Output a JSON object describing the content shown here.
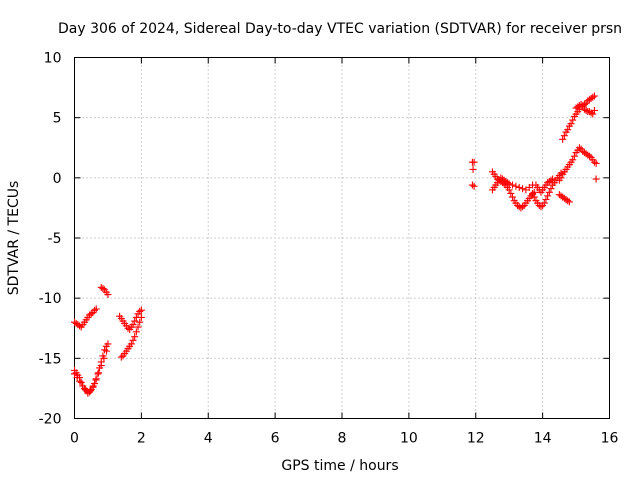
{
  "chart_data": {
    "type": "scatter",
    "title": "Day 306 of 2024, Sidereal Day-to-day VTEC variation (SDTVAR) for receiver prsn",
    "xlabel": "GPS time / hours",
    "ylabel": "SDTVAR / TECUs",
    "xlim": [
      0,
      16
    ],
    "ylim": [
      -20,
      10
    ],
    "x_ticks": [
      0,
      2,
      4,
      6,
      8,
      10,
      12,
      14,
      16
    ],
    "y_ticks": [
      -20,
      -15,
      -10,
      -5,
      0,
      5,
      10
    ],
    "x_tick_labels": [
      "0",
      "2",
      "4",
      "6",
      "8",
      "10",
      "12",
      "14",
      "16"
    ],
    "y_tick_labels": [
      "-20",
      "-15",
      "-10",
      "-5",
      "0",
      "5",
      "10"
    ],
    "grid": true,
    "marker": "+",
    "color": "#ff0000",
    "series": [
      {
        "values": [
          [
            0.0,
            -16.0
          ],
          [
            0.05,
            -16.2
          ],
          [
            0.1,
            -16.4
          ],
          [
            0.15,
            -16.6
          ],
          [
            0.2,
            -17.0
          ],
          [
            0.25,
            -17.3
          ],
          [
            0.3,
            -17.5
          ],
          [
            0.35,
            -17.7
          ],
          [
            0.4,
            -17.8
          ],
          [
            0.45,
            -17.8
          ],
          [
            0.5,
            -17.6
          ],
          [
            0.55,
            -17.4
          ],
          [
            0.6,
            -17.1
          ],
          [
            0.65,
            -16.7
          ],
          [
            0.7,
            -16.3
          ],
          [
            0.75,
            -15.8
          ],
          [
            0.8,
            -15.3
          ],
          [
            0.85,
            -14.8
          ],
          [
            0.9,
            -14.3
          ],
          [
            0.95,
            -14.0
          ],
          [
            1.0,
            -13.8
          ],
          [
            0.0,
            -16.3
          ],
          [
            0.08,
            -16.6
          ],
          [
            0.16,
            -16.9
          ],
          [
            0.24,
            -17.3
          ],
          [
            0.32,
            -17.6
          ],
          [
            0.4,
            -17.9
          ],
          [
            0.48,
            -17.7
          ],
          [
            0.56,
            -17.3
          ],
          [
            0.64,
            -16.8
          ],
          [
            0.72,
            -16.2
          ],
          [
            0.8,
            -15.6
          ],
          [
            0.88,
            -15.0
          ],
          [
            0.96,
            -14.4
          ],
          [
            0.0,
            -12.0
          ],
          [
            0.05,
            -12.1
          ],
          [
            0.1,
            -12.2
          ],
          [
            0.15,
            -12.3
          ],
          [
            0.2,
            -12.4
          ],
          [
            0.25,
            -12.2
          ],
          [
            0.3,
            -12.0
          ],
          [
            0.35,
            -11.8
          ],
          [
            0.4,
            -11.6
          ],
          [
            0.45,
            -11.4
          ],
          [
            0.5,
            -11.3
          ],
          [
            0.55,
            -11.2
          ],
          [
            0.6,
            -11.0
          ],
          [
            0.65,
            -10.9
          ],
          [
            0.8,
            -9.1
          ],
          [
            0.85,
            -9.2
          ],
          [
            0.9,
            -9.3
          ],
          [
            0.95,
            -9.5
          ],
          [
            1.0,
            -9.7
          ],
          [
            1.4,
            -14.9
          ],
          [
            1.45,
            -14.8
          ],
          [
            1.5,
            -14.6
          ],
          [
            1.55,
            -14.4
          ],
          [
            1.6,
            -14.2
          ],
          [
            1.65,
            -14.0
          ],
          [
            1.7,
            -13.8
          ],
          [
            1.75,
            -13.5
          ],
          [
            1.8,
            -13.2
          ],
          [
            1.85,
            -12.8
          ],
          [
            1.9,
            -12.4
          ],
          [
            1.95,
            -12.0
          ],
          [
            2.0,
            -11.6
          ],
          [
            1.35,
            -11.5
          ],
          [
            1.4,
            -11.7
          ],
          [
            1.45,
            -11.9
          ],
          [
            1.5,
            -12.1
          ],
          [
            1.55,
            -12.3
          ],
          [
            1.6,
            -12.5
          ],
          [
            1.65,
            -12.6
          ],
          [
            1.7,
            -12.4
          ],
          [
            1.75,
            -12.2
          ],
          [
            1.8,
            -11.9
          ],
          [
            1.85,
            -11.6
          ],
          [
            1.9,
            -11.3
          ],
          [
            1.95,
            -11.1
          ],
          [
            2.0,
            -11.0
          ],
          [
            11.9,
            1.3
          ],
          [
            11.95,
            1.3
          ],
          [
            11.92,
            0.7
          ],
          [
            11.9,
            -0.6
          ],
          [
            11.95,
            -0.7
          ],
          [
            12.5,
            0.5
          ],
          [
            12.55,
            0.3
          ],
          [
            12.6,
            0.1
          ],
          [
            12.65,
            -0.1
          ],
          [
            12.7,
            -0.2
          ],
          [
            12.75,
            -0.3
          ],
          [
            12.8,
            -0.4
          ],
          [
            12.85,
            -0.5
          ],
          [
            12.9,
            -0.6
          ],
          [
            12.95,
            -0.8
          ],
          [
            13.0,
            -1.0
          ],
          [
            13.05,
            -1.3
          ],
          [
            13.1,
            -1.6
          ],
          [
            13.15,
            -1.9
          ],
          [
            13.2,
            -2.1
          ],
          [
            13.25,
            -2.3
          ],
          [
            13.3,
            -2.4
          ],
          [
            13.35,
            -2.5
          ],
          [
            13.4,
            -2.4
          ],
          [
            13.45,
            -2.3
          ],
          [
            13.5,
            -2.1
          ],
          [
            13.55,
            -1.9
          ],
          [
            13.6,
            -1.7
          ],
          [
            13.65,
            -1.5
          ],
          [
            13.7,
            -1.3
          ],
          [
            13.75,
            -1.2
          ],
          [
            12.5,
            -1.0
          ],
          [
            12.55,
            -0.8
          ],
          [
            12.6,
            -0.6
          ],
          [
            12.65,
            -0.4
          ],
          [
            12.7,
            -0.2
          ],
          [
            12.75,
            0.0
          ],
          [
            12.8,
            -0.1
          ],
          [
            12.85,
            -0.2
          ],
          [
            12.9,
            -0.3
          ],
          [
            12.95,
            -0.4
          ],
          [
            13.0,
            -0.5
          ],
          [
            13.1,
            -0.6
          ],
          [
            13.2,
            -0.7
          ],
          [
            13.3,
            -0.8
          ],
          [
            13.4,
            -0.9
          ],
          [
            13.5,
            -1.0
          ],
          [
            13.6,
            -0.8
          ],
          [
            13.7,
            -0.6
          ],
          [
            13.7,
            -1.4
          ],
          [
            13.75,
            -1.6
          ],
          [
            13.8,
            -1.9
          ],
          [
            13.85,
            -2.1
          ],
          [
            13.9,
            -2.3
          ],
          [
            13.95,
            -2.4
          ],
          [
            14.0,
            -2.3
          ],
          [
            14.05,
            -2.1
          ],
          [
            14.1,
            -1.8
          ],
          [
            14.15,
            -1.5
          ],
          [
            14.2,
            -1.2
          ],
          [
            14.25,
            -0.9
          ],
          [
            14.3,
            -0.6
          ],
          [
            14.35,
            -0.4
          ],
          [
            14.4,
            -0.2
          ],
          [
            14.45,
            0.0
          ],
          [
            14.5,
            0.2
          ],
          [
            14.55,
            0.4
          ],
          [
            13.8,
            -0.6
          ],
          [
            13.85,
            -0.8
          ],
          [
            13.9,
            -1.0
          ],
          [
            13.95,
            -1.2
          ],
          [
            14.0,
            -1.0
          ],
          [
            14.05,
            -0.8
          ],
          [
            14.1,
            -0.6
          ],
          [
            14.15,
            -0.4
          ],
          [
            14.2,
            -0.3
          ],
          [
            14.25,
            -0.2
          ],
          [
            14.3,
            -0.1
          ],
          [
            14.5,
            -1.4
          ],
          [
            14.55,
            -1.5
          ],
          [
            14.6,
            -1.6
          ],
          [
            14.65,
            -1.7
          ],
          [
            14.7,
            -1.8
          ],
          [
            14.75,
            -1.9
          ],
          [
            14.8,
            -2.0
          ],
          [
            14.5,
            -0.2
          ],
          [
            14.55,
            0.0
          ],
          [
            14.6,
            0.3
          ],
          [
            14.65,
            0.5
          ],
          [
            14.7,
            0.7
          ],
          [
            14.75,
            0.9
          ],
          [
            14.8,
            1.1
          ],
          [
            14.85,
            1.3
          ],
          [
            14.9,
            1.5
          ],
          [
            14.95,
            1.8
          ],
          [
            15.0,
            2.1
          ],
          [
            15.05,
            2.3
          ],
          [
            15.1,
            2.5
          ],
          [
            15.15,
            2.4
          ],
          [
            15.2,
            2.2
          ],
          [
            15.25,
            2.1
          ],
          [
            15.3,
            2.0
          ],
          [
            15.35,
            1.9
          ],
          [
            15.4,
            1.8
          ],
          [
            15.45,
            1.7
          ],
          [
            15.5,
            1.5
          ],
          [
            15.55,
            1.3
          ],
          [
            15.6,
            1.2
          ],
          [
            14.6,
            3.2
          ],
          [
            14.65,
            3.5
          ],
          [
            14.7,
            3.8
          ],
          [
            14.75,
            4.0
          ],
          [
            14.8,
            4.3
          ],
          [
            14.85,
            4.5
          ],
          [
            14.9,
            4.8
          ],
          [
            14.95,
            5.1
          ],
          [
            15.0,
            5.3
          ],
          [
            15.05,
            5.5
          ],
          [
            15.1,
            5.7
          ],
          [
            15.15,
            5.9
          ],
          [
            15.2,
            6.0
          ],
          [
            15.25,
            6.1
          ],
          [
            15.3,
            6.2
          ],
          [
            15.35,
            6.4
          ],
          [
            15.4,
            6.5
          ],
          [
            15.45,
            6.6
          ],
          [
            15.5,
            6.7
          ],
          [
            15.55,
            6.8
          ],
          [
            15.0,
            5.8
          ],
          [
            15.05,
            5.9
          ],
          [
            15.1,
            6.0
          ],
          [
            15.15,
            6.1
          ],
          [
            15.2,
            5.9
          ],
          [
            15.25,
            5.7
          ],
          [
            15.3,
            5.6
          ],
          [
            15.35,
            5.5
          ],
          [
            15.4,
            5.5
          ],
          [
            15.45,
            5.4
          ],
          [
            15.5,
            5.3
          ],
          [
            15.55,
            5.6
          ],
          [
            15.6,
            -0.1
          ]
        ]
      }
    ]
  }
}
